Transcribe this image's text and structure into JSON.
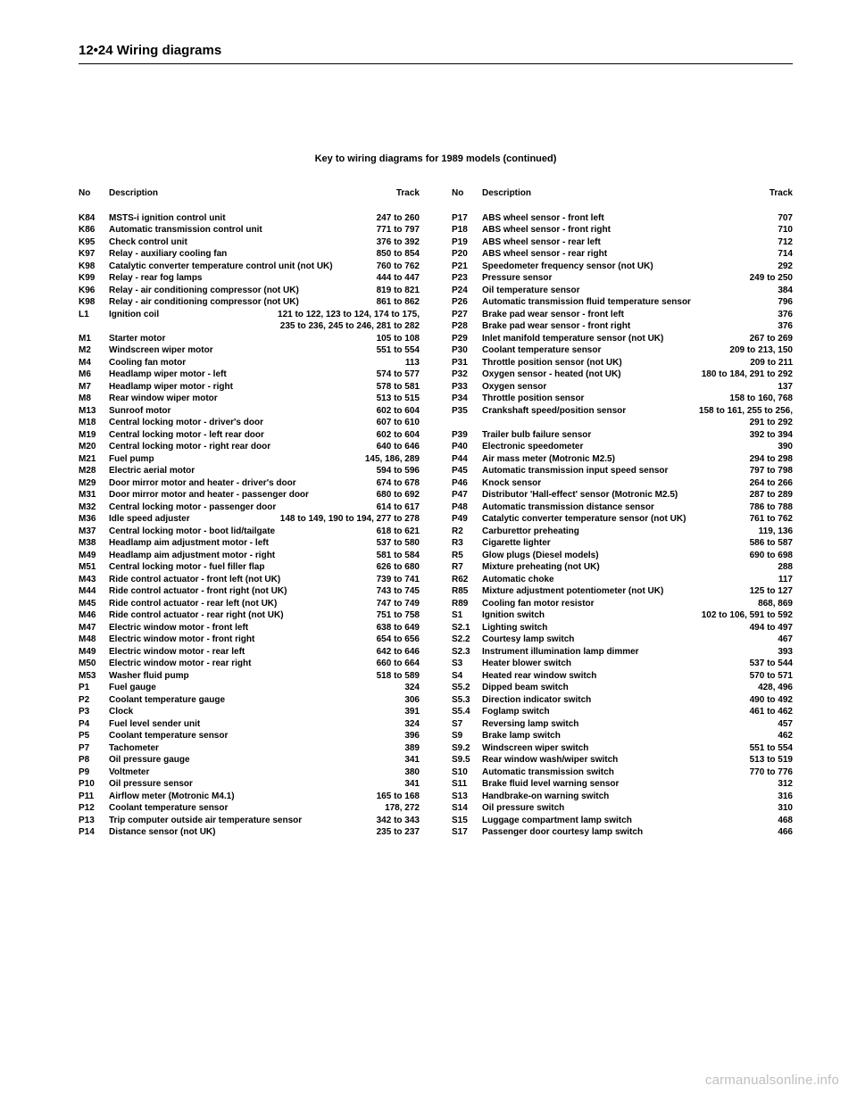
{
  "header": "12•24  Wiring diagrams",
  "keyTitle": "Key to wiring diagrams for 1989 models (continued)",
  "colHeaders": {
    "no": "No",
    "desc": "Description",
    "track": "Track"
  },
  "left": [
    {
      "no": "K84",
      "desc": "MSTS-i ignition control unit",
      "track": "247 to 260"
    },
    {
      "no": "K86",
      "desc": "Automatic transmission control unit",
      "track": "771 to 797"
    },
    {
      "no": "K95",
      "desc": "Check control unit",
      "track": "376 to 392"
    },
    {
      "no": "K97",
      "desc": "Relay - auxiliary cooling fan",
      "track": "850 to 854"
    },
    {
      "no": "K98",
      "desc": "Catalytic converter temperature control unit (not UK)",
      "track": "760 to 762"
    },
    {
      "no": "K99",
      "desc": "Relay - rear fog lamps",
      "track": "444 to 447"
    },
    {
      "no": "K96",
      "desc": "Relay - air conditioning compressor (not UK)",
      "track": "819 to 821"
    },
    {
      "no": "K98",
      "desc": "Relay - air conditioning compressor (not UK)",
      "track": "861 to 862"
    },
    {
      "no": "L1",
      "desc": "Ignition coil",
      "track": "121 to 122, 123 to 124, 174 to 175,",
      "cont": "235 to 236, 245 to 246, 281 to 282"
    },
    {
      "no": "M1",
      "desc": "Starter motor",
      "track": "105 to 108"
    },
    {
      "no": "M2",
      "desc": "Windscreen wiper motor",
      "track": "551 to 554"
    },
    {
      "no": "M4",
      "desc": "Cooling fan motor",
      "track": "113"
    },
    {
      "no": "M6",
      "desc": "Headlamp wiper motor - left",
      "track": "574 to 577"
    },
    {
      "no": "M7",
      "desc": "Headlamp wiper motor - right",
      "track": "578 to 581"
    },
    {
      "no": "M8",
      "desc": "Rear window wiper motor",
      "track": "513 to 515"
    },
    {
      "no": "M13",
      "desc": "Sunroof motor",
      "track": "602 to 604"
    },
    {
      "no": "M18",
      "desc": "Central locking motor - driver's door",
      "track": "607 to 610"
    },
    {
      "no": "M19",
      "desc": "Central locking motor - left rear door",
      "track": "602 to 604"
    },
    {
      "no": "M20",
      "desc": "Central locking motor - right rear door",
      "track": "640 to 646"
    },
    {
      "no": "M21",
      "desc": "Fuel pump",
      "track": "145, 186, 289"
    },
    {
      "no": "M28",
      "desc": "Electric aerial motor",
      "track": "594 to 596"
    },
    {
      "no": "M29",
      "desc": "Door mirror motor and heater - driver's door",
      "track": "674 to 678"
    },
    {
      "no": "M31",
      "desc": "Door mirror motor and heater - passenger door",
      "track": "680 to 692"
    },
    {
      "no": "M32",
      "desc": "Central locking motor - passenger door",
      "track": "614 to 617"
    },
    {
      "no": "M36",
      "desc": "Idle speed adjuster",
      "track": "148 to 149, 190 to 194, 277 to 278"
    },
    {
      "no": "M37",
      "desc": "Central locking motor - boot lid/tailgate",
      "track": "618 to 621"
    },
    {
      "no": "M38",
      "desc": "Headlamp aim adjustment motor - left",
      "track": "537 to 580"
    },
    {
      "no": "M49",
      "desc": "Headlamp aim adjustment motor - right",
      "track": "581 to 584"
    },
    {
      "no": "M51",
      "desc": "Central locking motor - fuel filler flap",
      "track": "626 to 680"
    },
    {
      "no": "M43",
      "desc": "Ride control actuator - front left (not UK)",
      "track": "739 to 741"
    },
    {
      "no": "M44",
      "desc": "Ride control actuator - front right (not UK)",
      "track": "743 to 745"
    },
    {
      "no": "M45",
      "desc": "Ride control actuator - rear left (not UK)",
      "track": "747 to 749"
    },
    {
      "no": "M46",
      "desc": "Ride control actuator - rear right (not UK)",
      "track": "751 to 758"
    },
    {
      "no": "M47",
      "desc": "Electric window motor - front left",
      "track": "638 to 649"
    },
    {
      "no": "M48",
      "desc": "Electric window motor - front right",
      "track": "654 to 656"
    },
    {
      "no": "M49",
      "desc": "Electric window motor - rear left",
      "track": "642 to 646"
    },
    {
      "no": "M50",
      "desc": "Electric window motor - rear right",
      "track": "660 to 664"
    },
    {
      "no": "M53",
      "desc": "Washer fluid pump",
      "track": "518 to 589"
    },
    {
      "no": "P1",
      "desc": "Fuel gauge",
      "track": "324"
    },
    {
      "no": "P2",
      "desc": "Coolant temperature gauge",
      "track": "306"
    },
    {
      "no": "P3",
      "desc": "Clock",
      "track": "391"
    },
    {
      "no": "P4",
      "desc": "Fuel level sender unit",
      "track": "324"
    },
    {
      "no": "P5",
      "desc": "Coolant temperature sensor",
      "track": "396"
    },
    {
      "no": "P7",
      "desc": "Tachometer",
      "track": "389"
    },
    {
      "no": "P8",
      "desc": "Oil pressure gauge",
      "track": "341"
    },
    {
      "no": "P9",
      "desc": "Voltmeter",
      "track": "380"
    },
    {
      "no": "P10",
      "desc": "Oil pressure sensor",
      "track": "341"
    },
    {
      "no": "P11",
      "desc": "Airflow meter (Motronic M4.1)",
      "track": "165 to 168"
    },
    {
      "no": "P12",
      "desc": "Coolant temperature sensor",
      "track": "178, 272"
    },
    {
      "no": "P13",
      "desc": "Trip computer outside air temperature sensor",
      "track": "342 to 343"
    },
    {
      "no": "P14",
      "desc": "Distance sensor (not UK)",
      "track": "235 to 237"
    }
  ],
  "right": [
    {
      "no": "P17",
      "desc": "ABS wheel sensor - front left",
      "track": "707"
    },
    {
      "no": "P18",
      "desc": "ABS wheel sensor - front right",
      "track": "710"
    },
    {
      "no": "P19",
      "desc": "ABS wheel sensor - rear left",
      "track": "712"
    },
    {
      "no": "P20",
      "desc": "ABS wheel sensor - rear right",
      "track": "714"
    },
    {
      "no": "P21",
      "desc": "Speedometer frequency sensor (not UK)",
      "track": "292"
    },
    {
      "no": "P23",
      "desc": "Pressure sensor",
      "track": "249 to 250"
    },
    {
      "no": "P24",
      "desc": "Oil temperature sensor",
      "track": "384"
    },
    {
      "no": "P26",
      "desc": "Automatic transmission fluid temperature sensor",
      "track": "796"
    },
    {
      "no": "P27",
      "desc": "Brake pad wear sensor - front left",
      "track": "376"
    },
    {
      "no": "P28",
      "desc": "Brake pad wear sensor - front right",
      "track": "376"
    },
    {
      "no": "P29",
      "desc": "Inlet manifold temperature sensor (not UK)",
      "track": "267 to 269"
    },
    {
      "no": "P30",
      "desc": "Coolant temperature sensor",
      "track": "209 to 213, 150"
    },
    {
      "no": "P31",
      "desc": "Throttle position sensor (not UK)",
      "track": "209 to 211"
    },
    {
      "no": "P32",
      "desc": "Oxygen sensor - heated (not UK)",
      "track": "180 to 184, 291 to 292"
    },
    {
      "no": "P33",
      "desc": "Oxygen sensor",
      "track": "137"
    },
    {
      "no": "P34",
      "desc": "Throttle position sensor",
      "track": "158 to 160, 768"
    },
    {
      "no": "P35",
      "desc": "Crankshaft speed/position sensor",
      "track": "158 to 161, 255 to 256,",
      "cont": "291 to 292"
    },
    {
      "no": "P39",
      "desc": "Trailer bulb failure sensor",
      "track": "392 to 394"
    },
    {
      "no": "P40",
      "desc": "Electronic speedometer",
      "track": "390"
    },
    {
      "no": "P44",
      "desc": "Air mass meter (Motronic M2.5)",
      "track": "294 to 298"
    },
    {
      "no": "P45",
      "desc": "Automatic transmission input speed sensor",
      "track": "797 to 798"
    },
    {
      "no": "P46",
      "desc": "Knock sensor",
      "track": "264 to 266"
    },
    {
      "no": "P47",
      "desc": "Distributor 'Hall-effect' sensor (Motronic M2.5)",
      "track": "287 to 289"
    },
    {
      "no": "P48",
      "desc": "Automatic transmission distance sensor",
      "track": "786 to 788"
    },
    {
      "no": "P49",
      "desc": "Catalytic converter temperature sensor (not UK)",
      "track": "761 to 762"
    },
    {
      "no": "R2",
      "desc": "Carburettor preheating",
      "track": "119, 136"
    },
    {
      "no": "R3",
      "desc": "Cigarette lighter",
      "track": "586 to 587"
    },
    {
      "no": "R5",
      "desc": "Glow plugs (Diesel models)",
      "track": "690 to 698"
    },
    {
      "no": "R7",
      "desc": "Mixture preheating (not UK)",
      "track": "288"
    },
    {
      "no": "R62",
      "desc": "Automatic choke",
      "track": "117"
    },
    {
      "no": "R85",
      "desc": "Mixture adjustment potentiometer (not UK)",
      "track": "125 to 127"
    },
    {
      "no": "R89",
      "desc": "Cooling fan motor resistor",
      "track": "868, 869"
    },
    {
      "no": "S1",
      "desc": "Ignition switch",
      "track": "102 to 106, 591 to 592"
    },
    {
      "no": "S2.1",
      "desc": "Lighting switch",
      "track": "494 to 497"
    },
    {
      "no": "S2.2",
      "desc": "Courtesy lamp switch",
      "track": "467"
    },
    {
      "no": "S2.3",
      "desc": "Instrument illumination lamp dimmer",
      "track": "393"
    },
    {
      "no": "S3",
      "desc": "Heater blower switch",
      "track": "537 to 544"
    },
    {
      "no": "S4",
      "desc": "Heated rear window switch",
      "track": "570 to 571"
    },
    {
      "no": "S5.2",
      "desc": "Dipped beam switch",
      "track": "428, 496"
    },
    {
      "no": "S5.3",
      "desc": "Direction indicator switch",
      "track": "490 to 492"
    },
    {
      "no": "S5.4",
      "desc": "Foglamp switch",
      "track": "461 to 462"
    },
    {
      "no": "S7",
      "desc": "Reversing lamp switch",
      "track": "457"
    },
    {
      "no": "S9",
      "desc": "Brake lamp switch",
      "track": "462"
    },
    {
      "no": "S9.2",
      "desc": "Windscreen wiper switch",
      "track": "551 to 554"
    },
    {
      "no": "S9.5",
      "desc": "Rear window wash/wiper switch",
      "track": "513 to 519"
    },
    {
      "no": "S10",
      "desc": "Automatic transmission switch",
      "track": "770 to 776"
    },
    {
      "no": "S11",
      "desc": "Brake fluid level warning sensor",
      "track": "312"
    },
    {
      "no": "S13",
      "desc": "Handbrake-on warning switch",
      "track": "316"
    },
    {
      "no": "S14",
      "desc": "Oil pressure switch",
      "track": "310"
    },
    {
      "no": "S15",
      "desc": "Luggage compartment lamp switch",
      "track": "468"
    },
    {
      "no": "S17",
      "desc": "Passenger door courtesy lamp switch",
      "track": "466"
    }
  ],
  "watermark": "carmanualsonline.info"
}
